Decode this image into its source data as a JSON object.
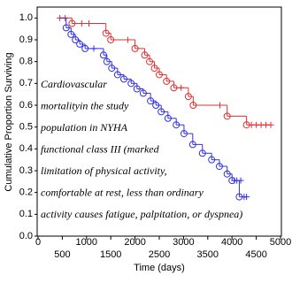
{
  "chart_data": {
    "type": "step",
    "xlabel": "Time (days)",
    "ylabel": "Cumulative Proportion Surviving",
    "annotation": [
      "Cardiovascular",
      "mortalityin the study",
      "population in NYHA",
      "functional class III (marked",
      "limitation of physical activity,",
      "comfortable at rest, less than ordinary",
      "activity causes fatigue, palpitation, or dyspnea)"
    ],
    "xlim": [
      0,
      5000
    ],
    "xticks": [
      0,
      500,
      1000,
      1500,
      2000,
      2500,
      3000,
      3500,
      4000,
      4500,
      5000
    ],
    "ylim": [
      0,
      1.05
    ],
    "yticks": [
      {
        "value": 0,
        "label": "0.0"
      },
      {
        "value": 0.1,
        "label": "0.1"
      },
      {
        "value": 0.2,
        "label": "0.2"
      },
      {
        "value": 0.3,
        "label": "0.3"
      },
      {
        "value": 0.4,
        "label": "0.4"
      },
      {
        "value": 0.5,
        "label": "0.5"
      },
      {
        "value": 0.6,
        "label": "0.6"
      },
      {
        "value": 0.7,
        "label": "0.7"
      },
      {
        "value": 0.8,
        "label": "0.8"
      },
      {
        "value": 0.9,
        "label": "0.9"
      },
      {
        "value": 1,
        "label": "1.0"
      }
    ],
    "series": [
      {
        "color": "#e03030",
        "x": [
          450,
          700,
          1400,
          1500,
          2000,
          2200,
          2300,
          2400,
          2500,
          2650,
          2800,
          3100,
          3200,
          3900,
          4300
        ],
        "values": [
          1.0,
          0.975,
          0.93,
          0.9,
          0.86,
          0.83,
          0.8,
          0.77,
          0.74,
          0.71,
          0.68,
          0.64,
          0.6,
          0.55,
          0.51
        ],
        "censored_x": [
          450,
          560,
          900,
          1050,
          1850,
          2950,
          3750,
          4400,
          4500,
          4600,
          4700,
          4800
        ],
        "censored_values": [
          1.0,
          1.0,
          0.975,
          0.975,
          0.9,
          0.68,
          0.6,
          0.51,
          0.51,
          0.51,
          0.51,
          0.51
        ]
      },
      {
        "color": "#3030e0",
        "x": [
          450,
          580,
          680,
          770,
          860,
          970,
          1350,
          1420,
          1520,
          1640,
          1770,
          1920,
          2040,
          2170,
          2320,
          2430,
          2540,
          2680,
          2850,
          3010,
          3190,
          3390,
          3580,
          3740,
          3900,
          4000,
          4150
        ],
        "values": [
          1.0,
          0.955,
          0.925,
          0.9,
          0.88,
          0.86,
          0.83,
          0.8,
          0.77,
          0.74,
          0.72,
          0.7,
          0.675,
          0.655,
          0.62,
          0.6,
          0.57,
          0.54,
          0.51,
          0.47,
          0.42,
          0.38,
          0.35,
          0.32,
          0.285,
          0.255,
          0.18
        ],
        "censored_x": [
          1150,
          4050,
          4100,
          4180,
          4250,
          4300
        ],
        "censored_values": [
          0.86,
          0.255,
          0.255,
          0.255,
          0.18,
          0.18
        ]
      }
    ]
  }
}
